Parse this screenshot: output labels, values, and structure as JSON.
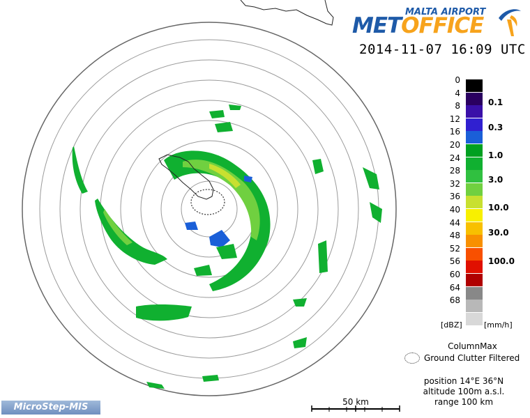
{
  "brand": {
    "top_line": "MALTA AIRPORT",
    "met": "MET",
    "office": "OFFICE",
    "colors": {
      "blue": "#1e5aa8",
      "orange": "#f7a31c"
    }
  },
  "timestamp": "2014-11-07 16:09 UTC",
  "legend": {
    "dbz_labels": [
      "0",
      "4",
      "8",
      "12",
      "16",
      "20",
      "24",
      "28",
      "32",
      "36",
      "40",
      "44",
      "48",
      "52",
      "56",
      "60",
      "64",
      "68"
    ],
    "rate_labels": [
      "0.1",
      "0.3",
      "1.0",
      "3.0",
      "10.0",
      "30.0",
      "100.0"
    ],
    "colors": [
      "#000000",
      "#2a0060",
      "#3a10a8",
      "#3020d0",
      "#1a5fd8",
      "#00a020",
      "#10b030",
      "#30c040",
      "#70d040",
      "#c8e030",
      "#f8f000",
      "#f8c000",
      "#f89000",
      "#f85000",
      "#e01000",
      "#b00000",
      "#888888",
      "#b8b8b8",
      "#d8d8d8"
    ],
    "unit_dbz": "[dBZ]",
    "unit_rate": "[mm/h]"
  },
  "product": {
    "name": "ColumnMax",
    "clutter_note": "Ground Clutter Filtered"
  },
  "site": {
    "position": "position 14°E 36°N",
    "altitude": "altitude 100m a.s.l.",
    "range": "range 100 km"
  },
  "scale": {
    "label": "50 km"
  },
  "vendor": "MicroStep-MIS"
}
